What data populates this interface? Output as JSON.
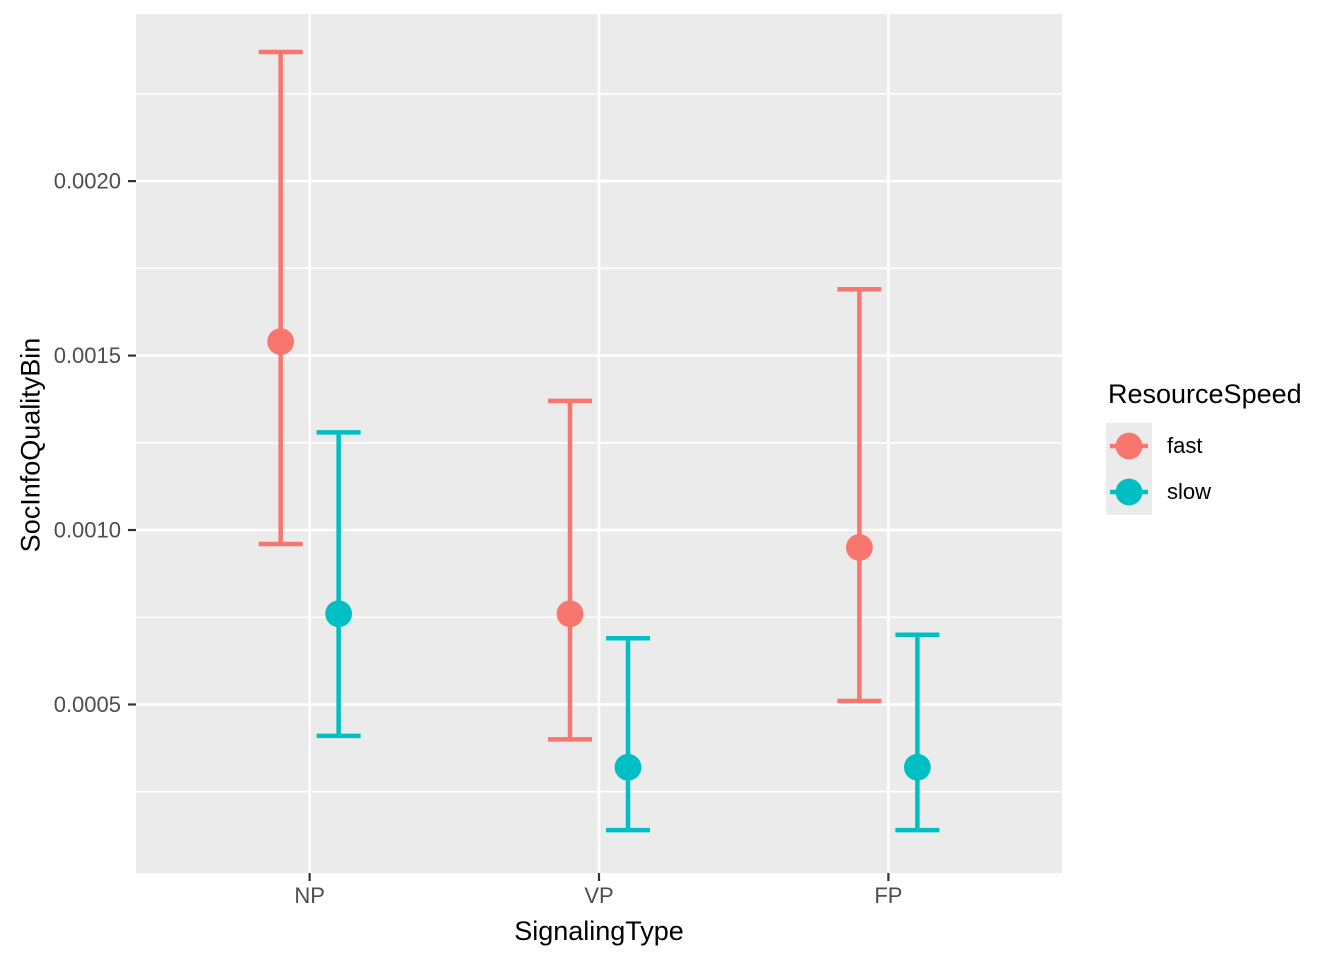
{
  "chart_data": {
    "type": "pointrange",
    "title": "",
    "xlabel": "SignalingType",
    "ylabel": "SocInfoQualityBin",
    "categories": [
      "NP",
      "VP",
      "FP"
    ],
    "series": [
      {
        "name": "fast",
        "color": "#F8766D",
        "y": [
          0.00154,
          0.00076,
          0.00095
        ],
        "ymin": [
          0.00096,
          0.0004,
          0.00051
        ],
        "ymax": [
          0.00237,
          0.00137,
          0.00169
        ]
      },
      {
        "name": "slow",
        "color": "#00BFC4",
        "y": [
          0.00076,
          0.00032,
          0.00032
        ],
        "ymin": [
          0.00041,
          0.00014,
          0.00014
        ],
        "ymax": [
          0.00128,
          0.00069,
          0.0007
        ]
      }
    ],
    "y_ticks": {
      "values": [
        0.0005,
        0.001,
        0.0015,
        0.002
      ],
      "labels": [
        "0.0005",
        "0.0010",
        "0.0015",
        "0.0020"
      ]
    },
    "y_minor": [
      0.00025,
      0.00075,
      0.00125,
      0.00175,
      0.00225
    ],
    "ylim": [
      1.7e-05,
      0.002479
    ],
    "grid": true,
    "legend": {
      "title": "ResourceSpeed",
      "position": "right",
      "entries": [
        {
          "label": "fast",
          "color": "#F8766D"
        },
        {
          "label": "slow",
          "color": "#00BFC4"
        }
      ]
    },
    "style": {
      "panel_bg": "#EBEBEB",
      "grid_color": "#FFFFFF",
      "tick_color": "#333333",
      "tick_label_color": "#4D4D4D",
      "title_color": "#000000"
    }
  }
}
